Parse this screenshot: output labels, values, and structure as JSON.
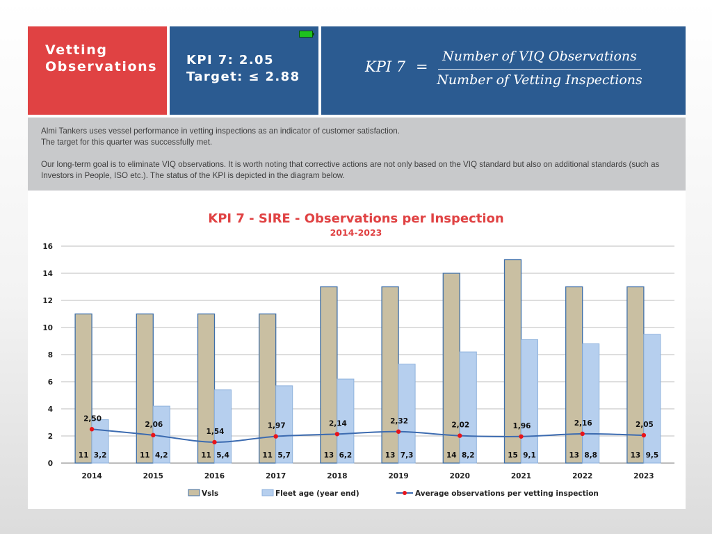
{
  "header": {
    "title_line1": "Vetting",
    "title_line2": "Observations",
    "kpi_value": "KPI 7: 2.05",
    "kpi_target": "Target: ≤ 2.88",
    "formula_lhs": "KPI  7",
    "formula_eq": "=",
    "formula_numerator": "Number of VIQ Observations",
    "formula_denominator": "Number of Vetting Inspections",
    "status_color": "#1ec21e"
  },
  "description": {
    "line1": "Almi Tankers uses vessel performance in vetting inspections as an indicator of customer satisfaction.",
    "line2": "The target for this quarter was successfully met.",
    "paragraph2": "Our long-term goal is to eliminate VIQ observations. It is worth noting that corrective actions are not only based on the VIQ standard but also on additional standards (such as Investors in People, ISO etc.). The  status of the KPI is depicted in the diagram below."
  },
  "chart_data": {
    "type": "bar",
    "title": "KPI 7 - SIRE - Observations per Inspection",
    "subtitle": "2014-2023",
    "categories": [
      "2014",
      "2015",
      "2016",
      "2017",
      "2018",
      "2019",
      "2020",
      "2021",
      "2022",
      "2023"
    ],
    "ylim": [
      0,
      16
    ],
    "yticks": [
      0,
      2,
      4,
      6,
      8,
      10,
      12,
      14,
      16
    ],
    "grid": true,
    "legend_position": "bottom",
    "series": [
      {
        "name": "Vsls",
        "type": "bar",
        "color": "#c9bfa2",
        "edge": "#3f6fa8",
        "values": [
          11,
          11,
          11,
          11,
          13,
          13,
          14,
          15,
          13,
          13
        ],
        "labels": [
          "11",
          "11",
          "11",
          "11",
          "13",
          "13",
          "14",
          "15",
          "13",
          "13"
        ]
      },
      {
        "name": "Fleet age (year end)",
        "type": "bar",
        "color": "#b6cfee",
        "edge": "#8fb2dd",
        "values": [
          3.2,
          4.2,
          5.4,
          5.7,
          6.2,
          7.3,
          8.2,
          9.1,
          8.8,
          9.5
        ],
        "labels": [
          "3,2",
          "4,2",
          "5,4",
          "5,7",
          "6,2",
          "7,3",
          "8,2",
          "9,1",
          "8,8",
          "9,5"
        ]
      },
      {
        "name": "Average observations per vetting inspection",
        "type": "line",
        "color": "#3c6bb0",
        "marker": "#e8141b",
        "values": [
          2.5,
          2.06,
          1.54,
          1.97,
          2.14,
          2.32,
          2.02,
          1.96,
          2.16,
          2.05
        ],
        "labels": [
          "2,50",
          "2,06",
          "1,54",
          "1,97",
          "2,14",
          "2,32",
          "2,02",
          "1,96",
          "2,16",
          "2,05"
        ]
      }
    ]
  }
}
